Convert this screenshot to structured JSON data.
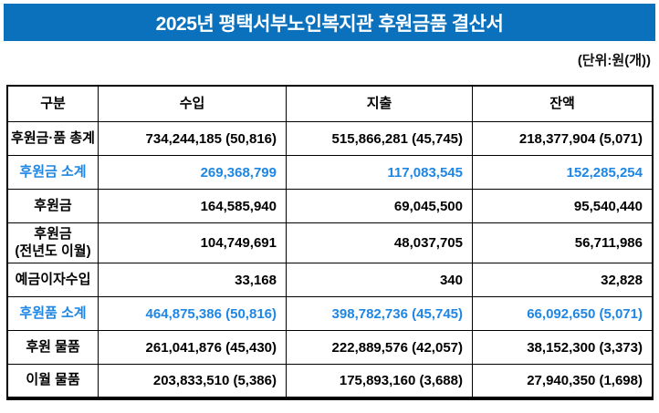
{
  "header": {
    "title": "2025년 평택서부노인복지관 후원금품 결산서",
    "unit_note": "(단위:원(개))"
  },
  "table": {
    "columns": [
      "구분",
      "수입",
      "지출",
      "잔액"
    ],
    "rows": [
      {
        "label": "후원금·품 총계",
        "income": "734,244,185 (50,816)",
        "expense": "515,866,281 (45,745)",
        "balance": "218,377,904 (5,071)"
      },
      {
        "label": "후원금 소계",
        "income": "269,368,799",
        "expense": "117,083,545",
        "balance": "152,285,254"
      },
      {
        "label": "후원금",
        "income": "164,585,940",
        "expense": "69,045,500",
        "balance": "95,540,440"
      },
      {
        "label": "후원금\n(전년도 이월)",
        "income": "104,749,691",
        "expense": "48,037,705",
        "balance": "56,711,986"
      },
      {
        "label": "예금이자수입",
        "income": "33,168",
        "expense": "340",
        "balance": "32,828"
      },
      {
        "label": "후원품 소계",
        "income": "464,875,386 (50,816)",
        "expense": "398,782,736 (45,745)",
        "balance": "66,092,650 (5,071)"
      },
      {
        "label": "후원 물품",
        "income": "261,041,876 (45,430)",
        "expense": "222,889,576 (42,057)",
        "balance": "38,152,300 (3,373)"
      },
      {
        "label": "이월 물품",
        "income": "203,833,510 (5,386)",
        "expense": "175,893,160 (3,688)",
        "balance": "27,940,350 (1,698)"
      }
    ]
  },
  "colors": {
    "header_bar": "#0B71BD",
    "accent_text": "#1E86E4",
    "border": "#000000"
  }
}
